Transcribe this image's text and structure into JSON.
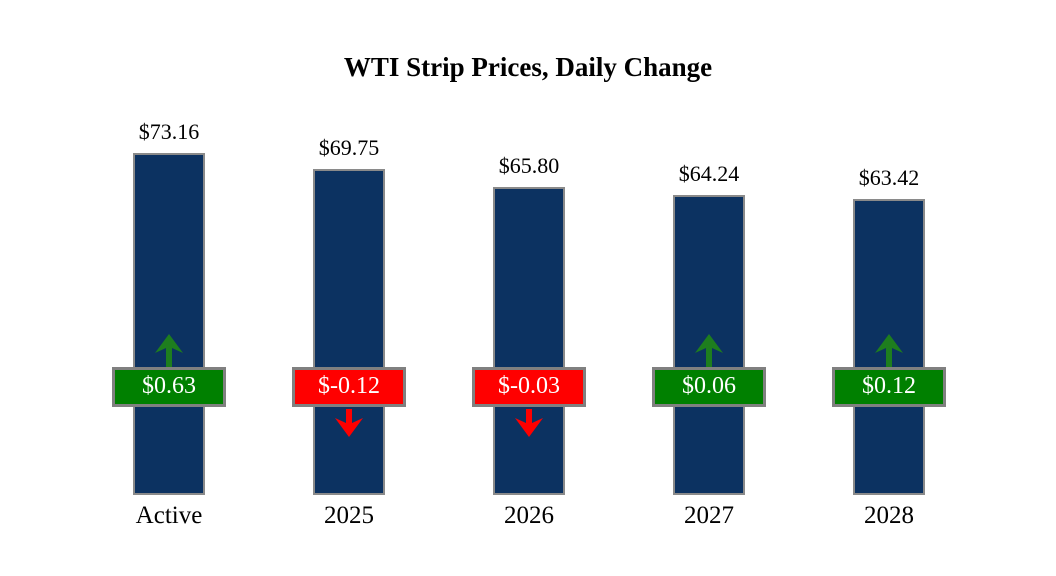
{
  "chart_data": {
    "type": "bar",
    "title": "WTI Strip Prices, Daily Change",
    "categories": [
      "Active",
      "2025",
      "2026",
      "2027",
      "2028"
    ],
    "values": [
      73.16,
      69.75,
      65.8,
      64.24,
      63.42
    ],
    "value_labels": [
      "$73.16",
      "$69.75",
      "$65.80",
      "$64.24",
      "$63.42"
    ],
    "changes": [
      0.63,
      -0.12,
      -0.03,
      0.06,
      0.12
    ],
    "change_labels": [
      "$0.63",
      "$-0.12",
      "$-0.03",
      "$0.06",
      "$0.12"
    ],
    "change_directions": [
      "up",
      "down",
      "down",
      "up",
      "up"
    ],
    "xlabel": "",
    "ylabel": "",
    "ylim": [
      0,
      75
    ],
    "grid": false,
    "axes_visible": false,
    "legend": null,
    "colors": {
      "bar": "#0C3261",
      "bar_border": "#8A8A8A",
      "positive_badge": "#008000",
      "negative_badge": "#FF0000",
      "badge_border": "#808080",
      "badge_text": "#FFFFFF",
      "up_arrow": "#1E7E1E",
      "down_arrow": "#FF0000",
      "text": "#000000",
      "background": "#FFFFFF"
    }
  }
}
